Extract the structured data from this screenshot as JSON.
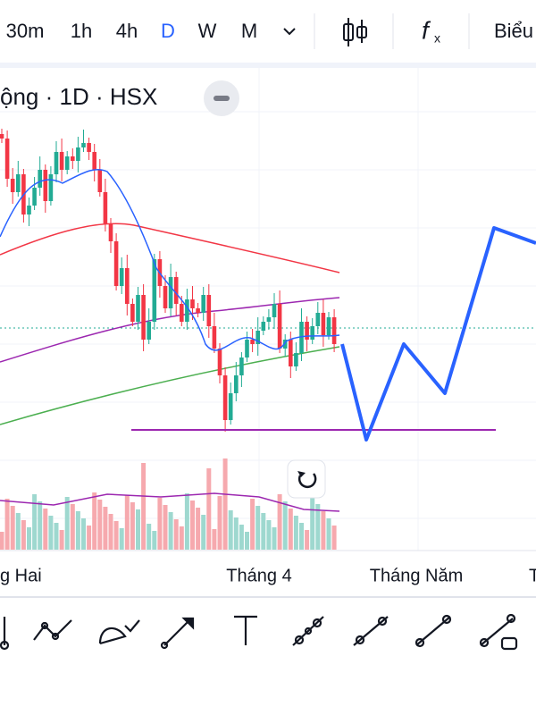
{
  "toolbar": {
    "intervals": [
      "30m",
      "1h",
      "4h",
      "D",
      "W",
      "M"
    ],
    "active": "D",
    "right_label": "Biểu"
  },
  "chart": {
    "title": "ộng · 1D · HSX",
    "x_labels": [
      "g Hai",
      "Tháng 4",
      "Tháng Năm",
      "T"
    ]
  }
}
